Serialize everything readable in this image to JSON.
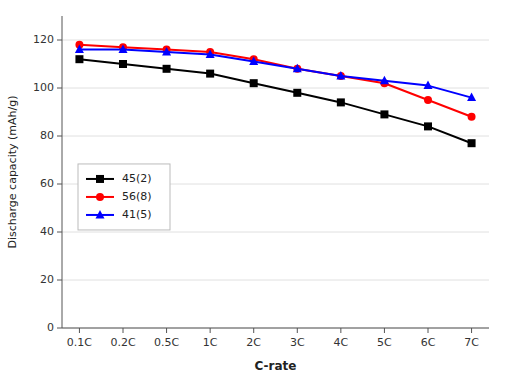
{
  "chart_data": {
    "type": "line",
    "x_label": "C-rate",
    "y_label": "Discharge capacity (mAh/g)",
    "categories": [
      "0.1C",
      "0.2C",
      "0.5C",
      "1C",
      "2C",
      "3C",
      "4C",
      "5C",
      "6C",
      "7C"
    ],
    "series": [
      {
        "name": "45(2)",
        "color": "#000000",
        "marker": "square",
        "values": [
          112,
          110,
          108,
          106,
          102,
          98,
          94,
          89,
          84,
          77
        ]
      },
      {
        "name": "56(8)",
        "color": "#ff0000",
        "marker": "circle",
        "values": [
          118,
          117,
          116,
          115,
          112,
          108,
          105,
          102,
          95,
          88
        ]
      },
      {
        "name": "41(5)",
        "color": "#0000ff",
        "marker": "triangle",
        "values": [
          116,
          116,
          115,
          114,
          111,
          108,
          105,
          103,
          101,
          96
        ]
      }
    ],
    "ylim": [
      0,
      130
    ],
    "yticks": [
      0,
      20,
      40,
      60,
      80,
      100,
      120
    ],
    "grid": true,
    "legend": "center left"
  }
}
